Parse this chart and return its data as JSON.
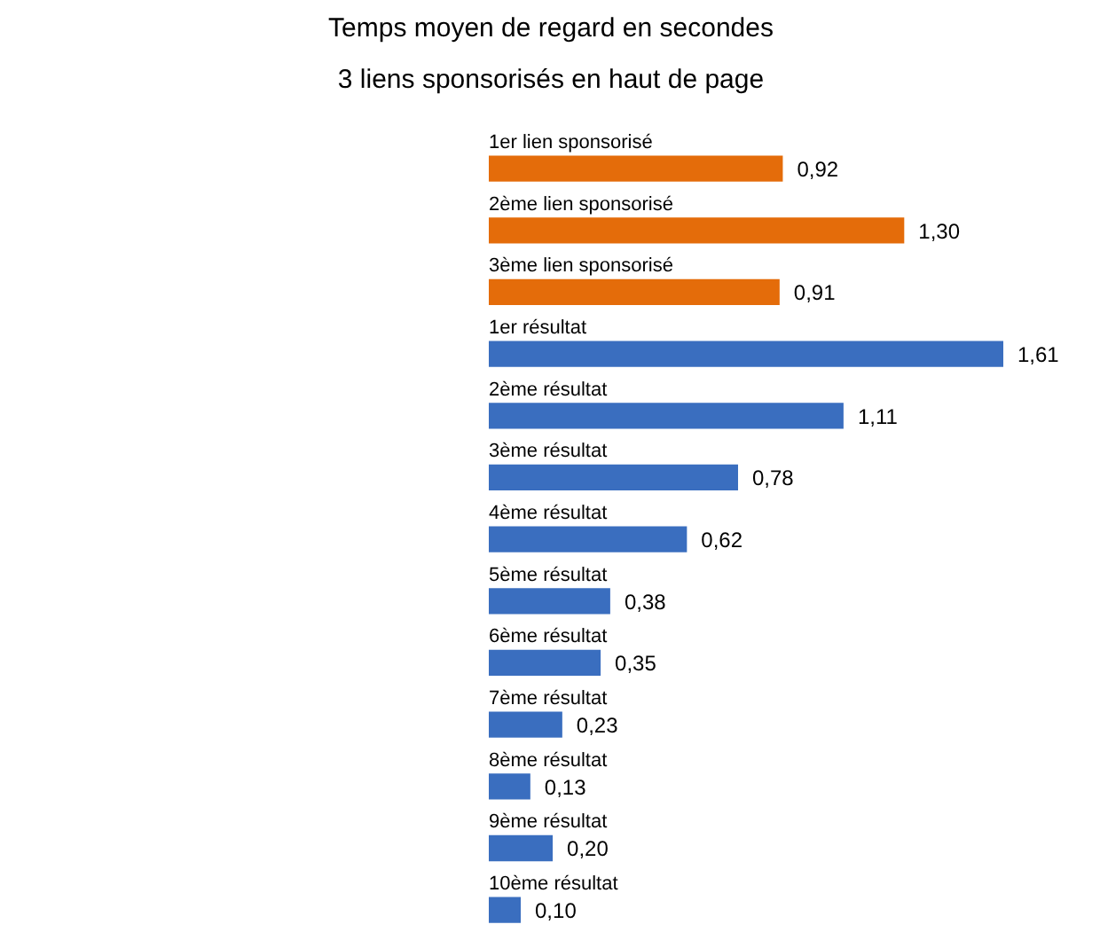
{
  "chart_data": {
    "type": "bar",
    "orientation": "horizontal",
    "title": "Temps moyen de regard en secondes",
    "subtitle": "3 liens sponsorisés en haut de page",
    "categories": [
      "1er lien sponsorisé",
      "2ème lien sponsorisé",
      "3ème lien sponsorisé",
      "1er résultat",
      "2ème résultat",
      "3ème résultat",
      "4ème résultat",
      "5ème résultat",
      "6ème résultat",
      "7ème résultat",
      "8ème résultat",
      "9ème résultat",
      "10ème résultat"
    ],
    "values": [
      0.92,
      1.3,
      0.91,
      1.61,
      1.11,
      0.78,
      0.62,
      0.38,
      0.35,
      0.23,
      0.13,
      0.2,
      0.1
    ],
    "value_labels": [
      "0,92",
      "1,30",
      "0,91",
      "1,61",
      "1,11",
      "0,78",
      "0,62",
      "0,38",
      "0,35",
      "0,23",
      "0,13",
      "0,20",
      "0,10"
    ],
    "colors": [
      "#e46c0a",
      "#e46c0a",
      "#e46c0a",
      "#3a6ebf",
      "#3a6ebf",
      "#3a6ebf",
      "#3a6ebf",
      "#3a6ebf",
      "#3a6ebf",
      "#3a6ebf",
      "#3a6ebf",
      "#3a6ebf",
      "#3a6ebf"
    ],
    "tick_labels": false
  }
}
